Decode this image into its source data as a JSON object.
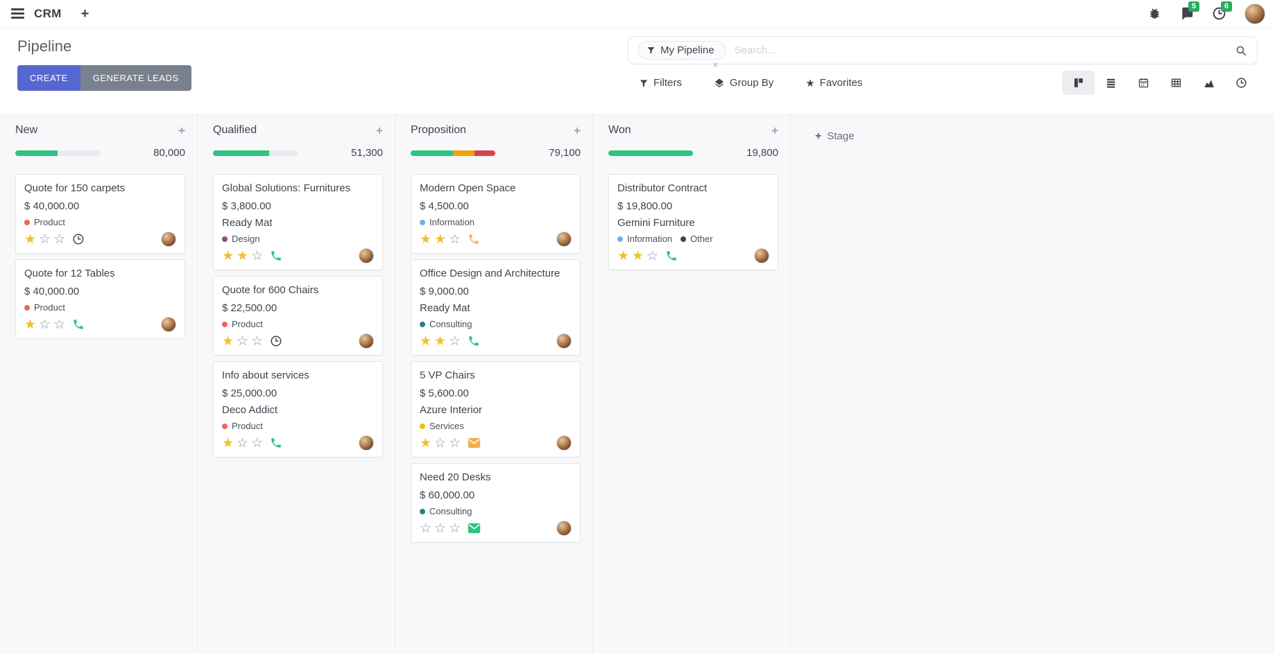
{
  "icons": {
    "add": "+",
    "star_filled": "★",
    "star_empty": "☆",
    "facet_remove": "×"
  },
  "navbar": {
    "app_name": "CRM",
    "message_count": "5",
    "activity_count": "6"
  },
  "control": {
    "title": "Pipeline",
    "create_label": "CREATE",
    "generate_leads_label": "GENERATE LEADS",
    "search": {
      "facet_label": "My Pipeline",
      "placeholder": "Search..."
    },
    "filters_label": "Filters",
    "group_by_label": "Group By",
    "favorites_label": "Favorites",
    "views": [
      "kanban",
      "list",
      "calendar",
      "pivot",
      "graph",
      "activity"
    ],
    "active_view": "kanban"
  },
  "board": {
    "add_stage_label": "Stage",
    "columns": [
      {
        "name": "New",
        "total": "80,000",
        "progress": [
          {
            "color": "#2fc482",
            "pct": 50
          }
        ],
        "cards": [
          {
            "title": "Quote for 150 carpets",
            "amount": "$ 40,000.00",
            "tags": [
              {
                "label": "Product",
                "color": "#ea6759"
              }
            ],
            "stars": 1,
            "activity": {
              "icon": "clock",
              "color": "#3f4450"
            }
          },
          {
            "title": "Quote for 12 Tables",
            "amount": "$ 40,000.00",
            "tags": [
              {
                "label": "Product",
                "color": "#ea6759"
              }
            ],
            "stars": 1,
            "activity": {
              "icon": "phone",
              "color": "#2fc482"
            }
          }
        ]
      },
      {
        "name": "Qualified",
        "total": "51,300",
        "progress": [
          {
            "color": "#2fc482",
            "pct": 66
          }
        ],
        "cards": [
          {
            "title": "Global Solutions: Furnitures",
            "amount": "$ 3,800.00",
            "partner": "Ready Mat",
            "tags": [
              {
                "label": "Design",
                "color": "#8e4a8e"
              }
            ],
            "stars": 2,
            "activity": {
              "icon": "phone",
              "color": "#2fc482"
            }
          },
          {
            "title": "Quote for 600 Chairs",
            "amount": "$ 22,500.00",
            "tags": [
              {
                "label": "Product",
                "color": "#ea6759"
              }
            ],
            "stars": 1,
            "activity": {
              "icon": "clock",
              "color": "#3f4450"
            }
          },
          {
            "title": "Info about services",
            "amount": "$ 25,000.00",
            "partner": "Deco Addict",
            "tags": [
              {
                "label": "Product",
                "color": "#ea6759"
              }
            ],
            "stars": 1,
            "activity": {
              "icon": "phone",
              "color": "#2fc482"
            }
          }
        ]
      },
      {
        "name": "Proposition",
        "total": "79,100",
        "progress": [
          {
            "color": "#2fc482",
            "pct": 50
          },
          {
            "color": "#f0a30a",
            "pct": 25
          },
          {
            "color": "#d6414d",
            "pct": 25
          }
        ],
        "cards": [
          {
            "title": "Modern Open Space",
            "amount": "$ 4,500.00",
            "tags": [
              {
                "label": "Information",
                "color": "#6fb1e8"
              }
            ],
            "stars": 2,
            "activity": {
              "icon": "phone",
              "color": "#f2b352"
            }
          },
          {
            "title": "Office Design and Architecture",
            "amount": "$ 9,000.00",
            "partner": "Ready Mat",
            "tags": [
              {
                "label": "Consulting",
                "color": "#20818f"
              }
            ],
            "stars": 2,
            "activity": {
              "icon": "phone",
              "color": "#2fc482"
            }
          },
          {
            "title": "5 VP Chairs",
            "amount": "$ 5,600.00",
            "partner": "Azure Interior",
            "tags": [
              {
                "label": "Services",
                "color": "#efc00a"
              }
            ],
            "stars": 1,
            "activity": {
              "icon": "envelope",
              "color": "#f0ad4e"
            }
          },
          {
            "title": "Need 20 Desks",
            "amount": "$ 60,000.00",
            "tags": [
              {
                "label": "Consulting",
                "color": "#20818f"
              }
            ],
            "stars": 0,
            "activity": {
              "icon": "envelope",
              "color": "#2fc482"
            }
          }
        ]
      },
      {
        "name": "Won",
        "total": "19,800",
        "progress": [
          {
            "color": "#2fc482",
            "pct": 100
          }
        ],
        "cards": [
          {
            "title": "Distributor Contract",
            "amount": "$ 19,800.00",
            "partner": "Gemini Furniture",
            "tags": [
              {
                "label": "Information",
                "color": "#6fb1e8"
              },
              {
                "label": "Other",
                "color": "#32475b"
              }
            ],
            "stars": 2,
            "activity": {
              "icon": "phone",
              "color": "#2fc482"
            }
          }
        ]
      }
    ]
  }
}
